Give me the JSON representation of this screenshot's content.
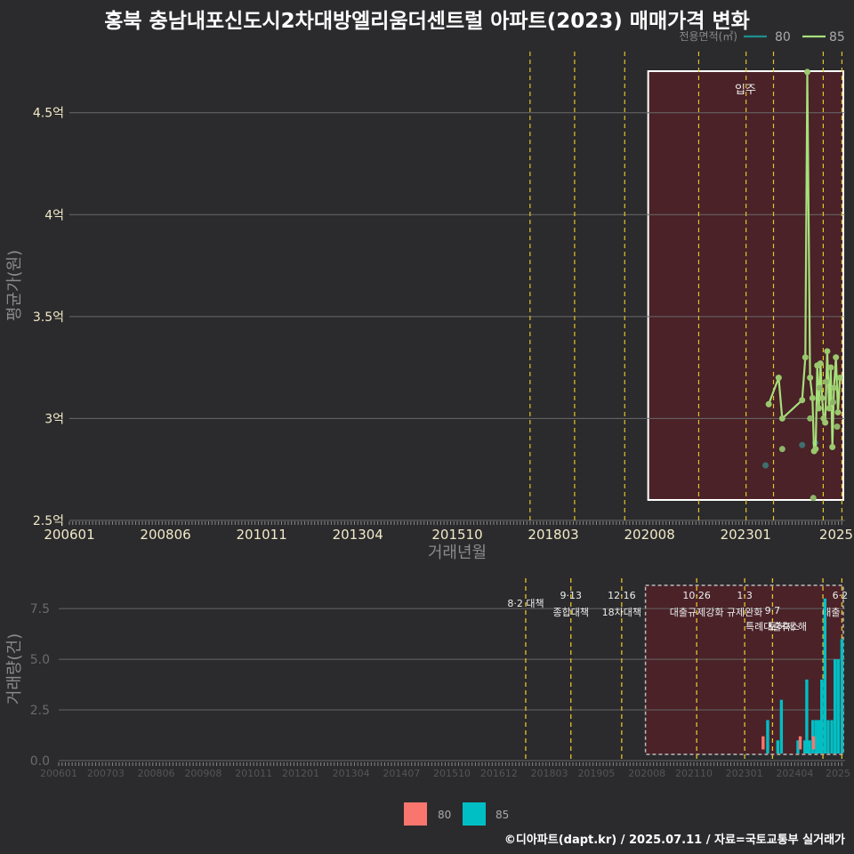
{
  "title": "홍북 충남내포신도시2차대방엘리움더센트럴 아파트(2023) 매매가격 변화",
  "footer": "©디아파트(dapt.kr) / 2025.07.11 / 자료=국토교통부 실거래가",
  "colors": {
    "s80_line": "#1f8f8f",
    "s85_line": "#a6e07a",
    "s80_bar": "#f8766d",
    "s85_bar": "#00bfc4",
    "event": "#e6c229",
    "shade": "#4a2228"
  },
  "chart_data": [
    {
      "type": "line",
      "title": "홍북 충남내포신도시2차대방엘리움더센트럴 아파트(2023) 매매가격 변화",
      "xlabel": "거래년월",
      "ylabel": "평균가(원)",
      "ylim": [
        2.5,
        4.8
      ],
      "yticks": [
        2.5,
        3.0,
        3.5,
        4.0,
        4.5
      ],
      "ytick_labels": [
        "2.5억",
        "3억",
        "3.5억",
        "4억",
        "4.5억"
      ],
      "xticks": [
        "200601",
        "200806",
        "201011",
        "201304",
        "201510",
        "201803",
        "202008",
        "202301",
        "2025"
      ],
      "legend_title": "전용면적(㎡)",
      "legend": [
        "80",
        "85"
      ],
      "annotation": "입주",
      "series": [
        {
          "name": "80",
          "points": [
            [
              2023.5,
              2.77
            ],
            [
              2024.42,
              2.87
            ],
            [
              2024.75,
              2.88
            ]
          ]
        },
        {
          "name": "85",
          "points": [
            [
              2023.58,
              3.07
            ],
            [
              2023.83,
              3.2
            ],
            [
              2023.92,
              3.0
            ],
            [
              2024.42,
              3.09
            ],
            [
              2024.5,
              3.3
            ],
            [
              2024.55,
              4.7
            ],
            [
              2024.62,
              3.2
            ],
            [
              2024.68,
              3.1
            ],
            [
              2024.72,
              2.84
            ],
            [
              2024.76,
              2.85
            ],
            [
              2024.8,
              3.26
            ],
            [
              2024.84,
              3.05
            ],
            [
              2024.88,
              3.27
            ],
            [
              2024.92,
              3.1
            ],
            [
              2024.96,
              3.0
            ],
            [
              2025.0,
              2.98
            ],
            [
              2025.05,
              3.33
            ],
            [
              2025.1,
              3.05
            ],
            [
              2025.14,
              3.25
            ],
            [
              2025.18,
              2.86
            ],
            [
              2025.22,
              3.15
            ],
            [
              2025.27,
              3.3
            ],
            [
              2025.32,
              3.03
            ],
            [
              2025.37,
              3.2
            ]
          ]
        },
        {
          "name": "85-points",
          "points": [
            [
              2023.92,
              2.85
            ],
            [
              2024.62,
              3.0
            ],
            [
              2024.7,
              2.61
            ],
            [
              2024.86,
              3.15
            ],
            [
              2025.02,
              3.18
            ],
            [
              2025.2,
              3.08
            ],
            [
              2025.3,
              2.96
            ]
          ]
        }
      ]
    },
    {
      "type": "bar",
      "ylabel": "거래량(건)",
      "ylim": [
        0,
        9
      ],
      "yticks": [
        0.0,
        2.5,
        5.0,
        7.5
      ],
      "ytick_labels": [
        "0.0",
        "2.5",
        "5.0",
        "7.5"
      ],
      "xticks": [
        "200601",
        "200703",
        "200806",
        "200908",
        "201011",
        "201201",
        "201304",
        "201407",
        "201510",
        "201612",
        "201803",
        "201905",
        "202008",
        "202110",
        "202301",
        "202404",
        "2025"
      ],
      "legend": [
        "80",
        "85"
      ],
      "series": [
        {
          "name": "80",
          "points": [
            [
              2023.5,
              1
            ],
            [
              2024.42,
              1
            ],
            [
              2024.75,
              1
            ]
          ]
        },
        {
          "name": "85",
          "points": [
            [
              2023.58,
              2
            ],
            [
              2023.83,
              1
            ],
            [
              2023.92,
              3
            ],
            [
              2024.33,
              1
            ],
            [
              2024.5,
              1
            ],
            [
              2024.55,
              4
            ],
            [
              2024.62,
              1
            ],
            [
              2024.7,
              2
            ],
            [
              2024.78,
              2
            ],
            [
              2024.85,
              2
            ],
            [
              2024.92,
              4
            ],
            [
              2025.0,
              8
            ],
            [
              2025.08,
              2
            ],
            [
              2025.17,
              2
            ],
            [
              2025.25,
              5
            ],
            [
              2025.33,
              5
            ],
            [
              2025.42,
              6
            ]
          ]
        }
      ],
      "events": [
        {
          "x": 2017.58,
          "date": "8·2 대책",
          "label": ""
        },
        {
          "x": 2018.7,
          "date": "9·13",
          "label": "종합대책"
        },
        {
          "x": 2019.96,
          "date": "12·16",
          "label": "18차대책"
        },
        {
          "x": 2021.82,
          "date": "10·26",
          "label": "대출규제강화"
        },
        {
          "x": 2023.01,
          "date": "1·3",
          "label": "규제완화"
        },
        {
          "x": 2023.7,
          "date": "9·7",
          "label": "특례대출축소"
        },
        {
          "x": 2024.95,
          "date": "",
          "label": "토허제 해"
        },
        {
          "x": 2025.42,
          "date": "6·2",
          "label": "대출"
        }
      ]
    }
  ]
}
